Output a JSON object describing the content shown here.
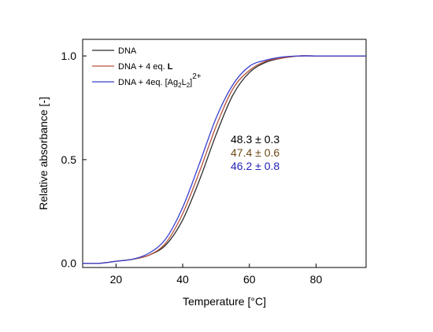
{
  "chart_data": {
    "type": "line",
    "xlabel": "Temperature [°C]",
    "ylabel": "Relative absorbance [-]",
    "xlim": [
      10,
      95
    ],
    "ylim": [
      -0.02,
      1.08
    ],
    "xticks": [
      20,
      40,
      60,
      80
    ],
    "yticks": [
      0.0,
      0.5,
      1.0
    ],
    "xtick_labels": [
      "20",
      "40",
      "60",
      "80"
    ],
    "ytick_labels": [
      "0.0",
      "0.5",
      "1.0"
    ],
    "legend_position": "top-left",
    "grid": false,
    "series": [
      {
        "name": "DNA",
        "color": "#2b2b2b",
        "x": [
          10,
          15,
          20,
          25,
          30,
          35,
          40,
          45,
          50,
          55,
          60,
          65,
          70,
          75,
          80,
          85,
          90,
          95
        ],
        "y": [
          0.0,
          0.0,
          0.01,
          0.02,
          0.04,
          0.09,
          0.21,
          0.4,
          0.62,
          0.81,
          0.92,
          0.97,
          0.99,
          1.0,
          1.0,
          1.0,
          1.0,
          1.0
        ]
      },
      {
        "name": "DNA + 4 eq. L",
        "name_plain": "DNA + 4 eq. ",
        "name_bold": "L",
        "color": "#b5503a",
        "x": [
          10,
          15,
          20,
          25,
          30,
          35,
          40,
          45,
          50,
          55,
          60,
          65,
          70,
          75,
          80,
          85,
          90,
          95
        ],
        "y": [
          0.0,
          0.0,
          0.01,
          0.02,
          0.04,
          0.1,
          0.24,
          0.44,
          0.66,
          0.84,
          0.93,
          0.975,
          0.99,
          1.0,
          1.0,
          1.0,
          1.0,
          1.0
        ]
      },
      {
        "name": "DNA + 4eq. [Ag2L2]2+",
        "name_main": "DNA + 4eq. [Ag",
        "name_sub1": "2",
        "name_mid": "L",
        "name_sub2": "2",
        "name_end": "]",
        "name_sup": "2+",
        "color": "#3a3fcf",
        "x": [
          10,
          15,
          20,
          25,
          30,
          35,
          40,
          45,
          50,
          55,
          60,
          65,
          70,
          75,
          80,
          85,
          90,
          95
        ],
        "y": [
          0.0,
          0.0,
          0.01,
          0.02,
          0.05,
          0.12,
          0.27,
          0.48,
          0.7,
          0.86,
          0.95,
          0.98,
          0.995,
          1.0,
          1.0,
          1.0,
          1.0,
          1.0
        ]
      }
    ],
    "annotations": [
      {
        "text": "48.3 ± 0.3",
        "color": "#000000"
      },
      {
        "text": "47.4 ± 0.6",
        "color": "#6b4a16"
      },
      {
        "text": "46.2 ± 0.8",
        "color": "#2323b8"
      }
    ]
  }
}
